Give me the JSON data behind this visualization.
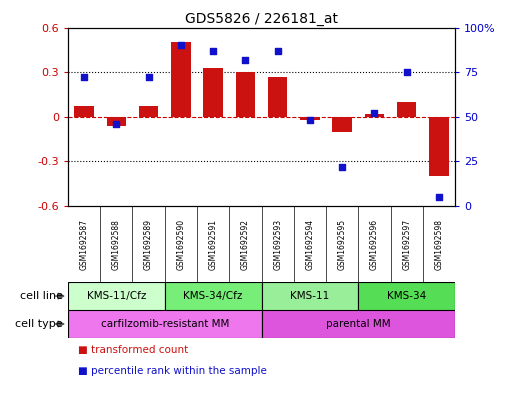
{
  "title": "GDS5826 / 226181_at",
  "samples": [
    "GSM1692587",
    "GSM1692588",
    "GSM1692589",
    "GSM1692590",
    "GSM1692591",
    "GSM1692592",
    "GSM1692593",
    "GSM1692594",
    "GSM1692595",
    "GSM1692596",
    "GSM1692597",
    "GSM1692598"
  ],
  "bar_values": [
    0.07,
    -0.06,
    0.07,
    0.5,
    0.33,
    0.3,
    0.27,
    -0.02,
    -0.1,
    0.02,
    0.1,
    -0.4
  ],
  "scatter_values": [
    72,
    46,
    72,
    90,
    87,
    82,
    87,
    48,
    22,
    52,
    75,
    5
  ],
  "bar_color": "#cc1111",
  "scatter_color": "#1111cc",
  "ylim_left": [
    -0.6,
    0.6
  ],
  "ylim_right": [
    0,
    100
  ],
  "yticks_left": [
    -0.6,
    -0.3,
    0.0,
    0.3,
    0.6
  ],
  "ytick_labels_left": [
    "-0.6",
    "-0.3",
    "0",
    "0.3",
    "0.6"
  ],
  "yticks_right": [
    0,
    25,
    50,
    75,
    100
  ],
  "ytick_labels_right": [
    "0",
    "25",
    "50",
    "75",
    "100%"
  ],
  "cell_line_groups": [
    {
      "label": "KMS-11/Cfz",
      "start": 0,
      "end": 3,
      "color": "#ccffcc"
    },
    {
      "label": "KMS-34/Cfz",
      "start": 3,
      "end": 6,
      "color": "#77ee77"
    },
    {
      "label": "KMS-11",
      "start": 6,
      "end": 9,
      "color": "#99ee99"
    },
    {
      "label": "KMS-34",
      "start": 9,
      "end": 12,
      "color": "#55dd55"
    }
  ],
  "cell_type_groups": [
    {
      "label": "carfilzomib-resistant MM",
      "start": 0,
      "end": 6,
      "color": "#ee77ee"
    },
    {
      "label": "parental MM",
      "start": 6,
      "end": 12,
      "color": "#dd55dd"
    }
  ],
  "cell_line_label": "cell line",
  "cell_type_label": "cell type",
  "legend_items": [
    {
      "color": "#cc1111",
      "label": "transformed count"
    },
    {
      "color": "#1111cc",
      "label": "percentile rank within the sample"
    }
  ],
  "sample_bg": "#cccccc",
  "plot_bg": "#ffffff"
}
